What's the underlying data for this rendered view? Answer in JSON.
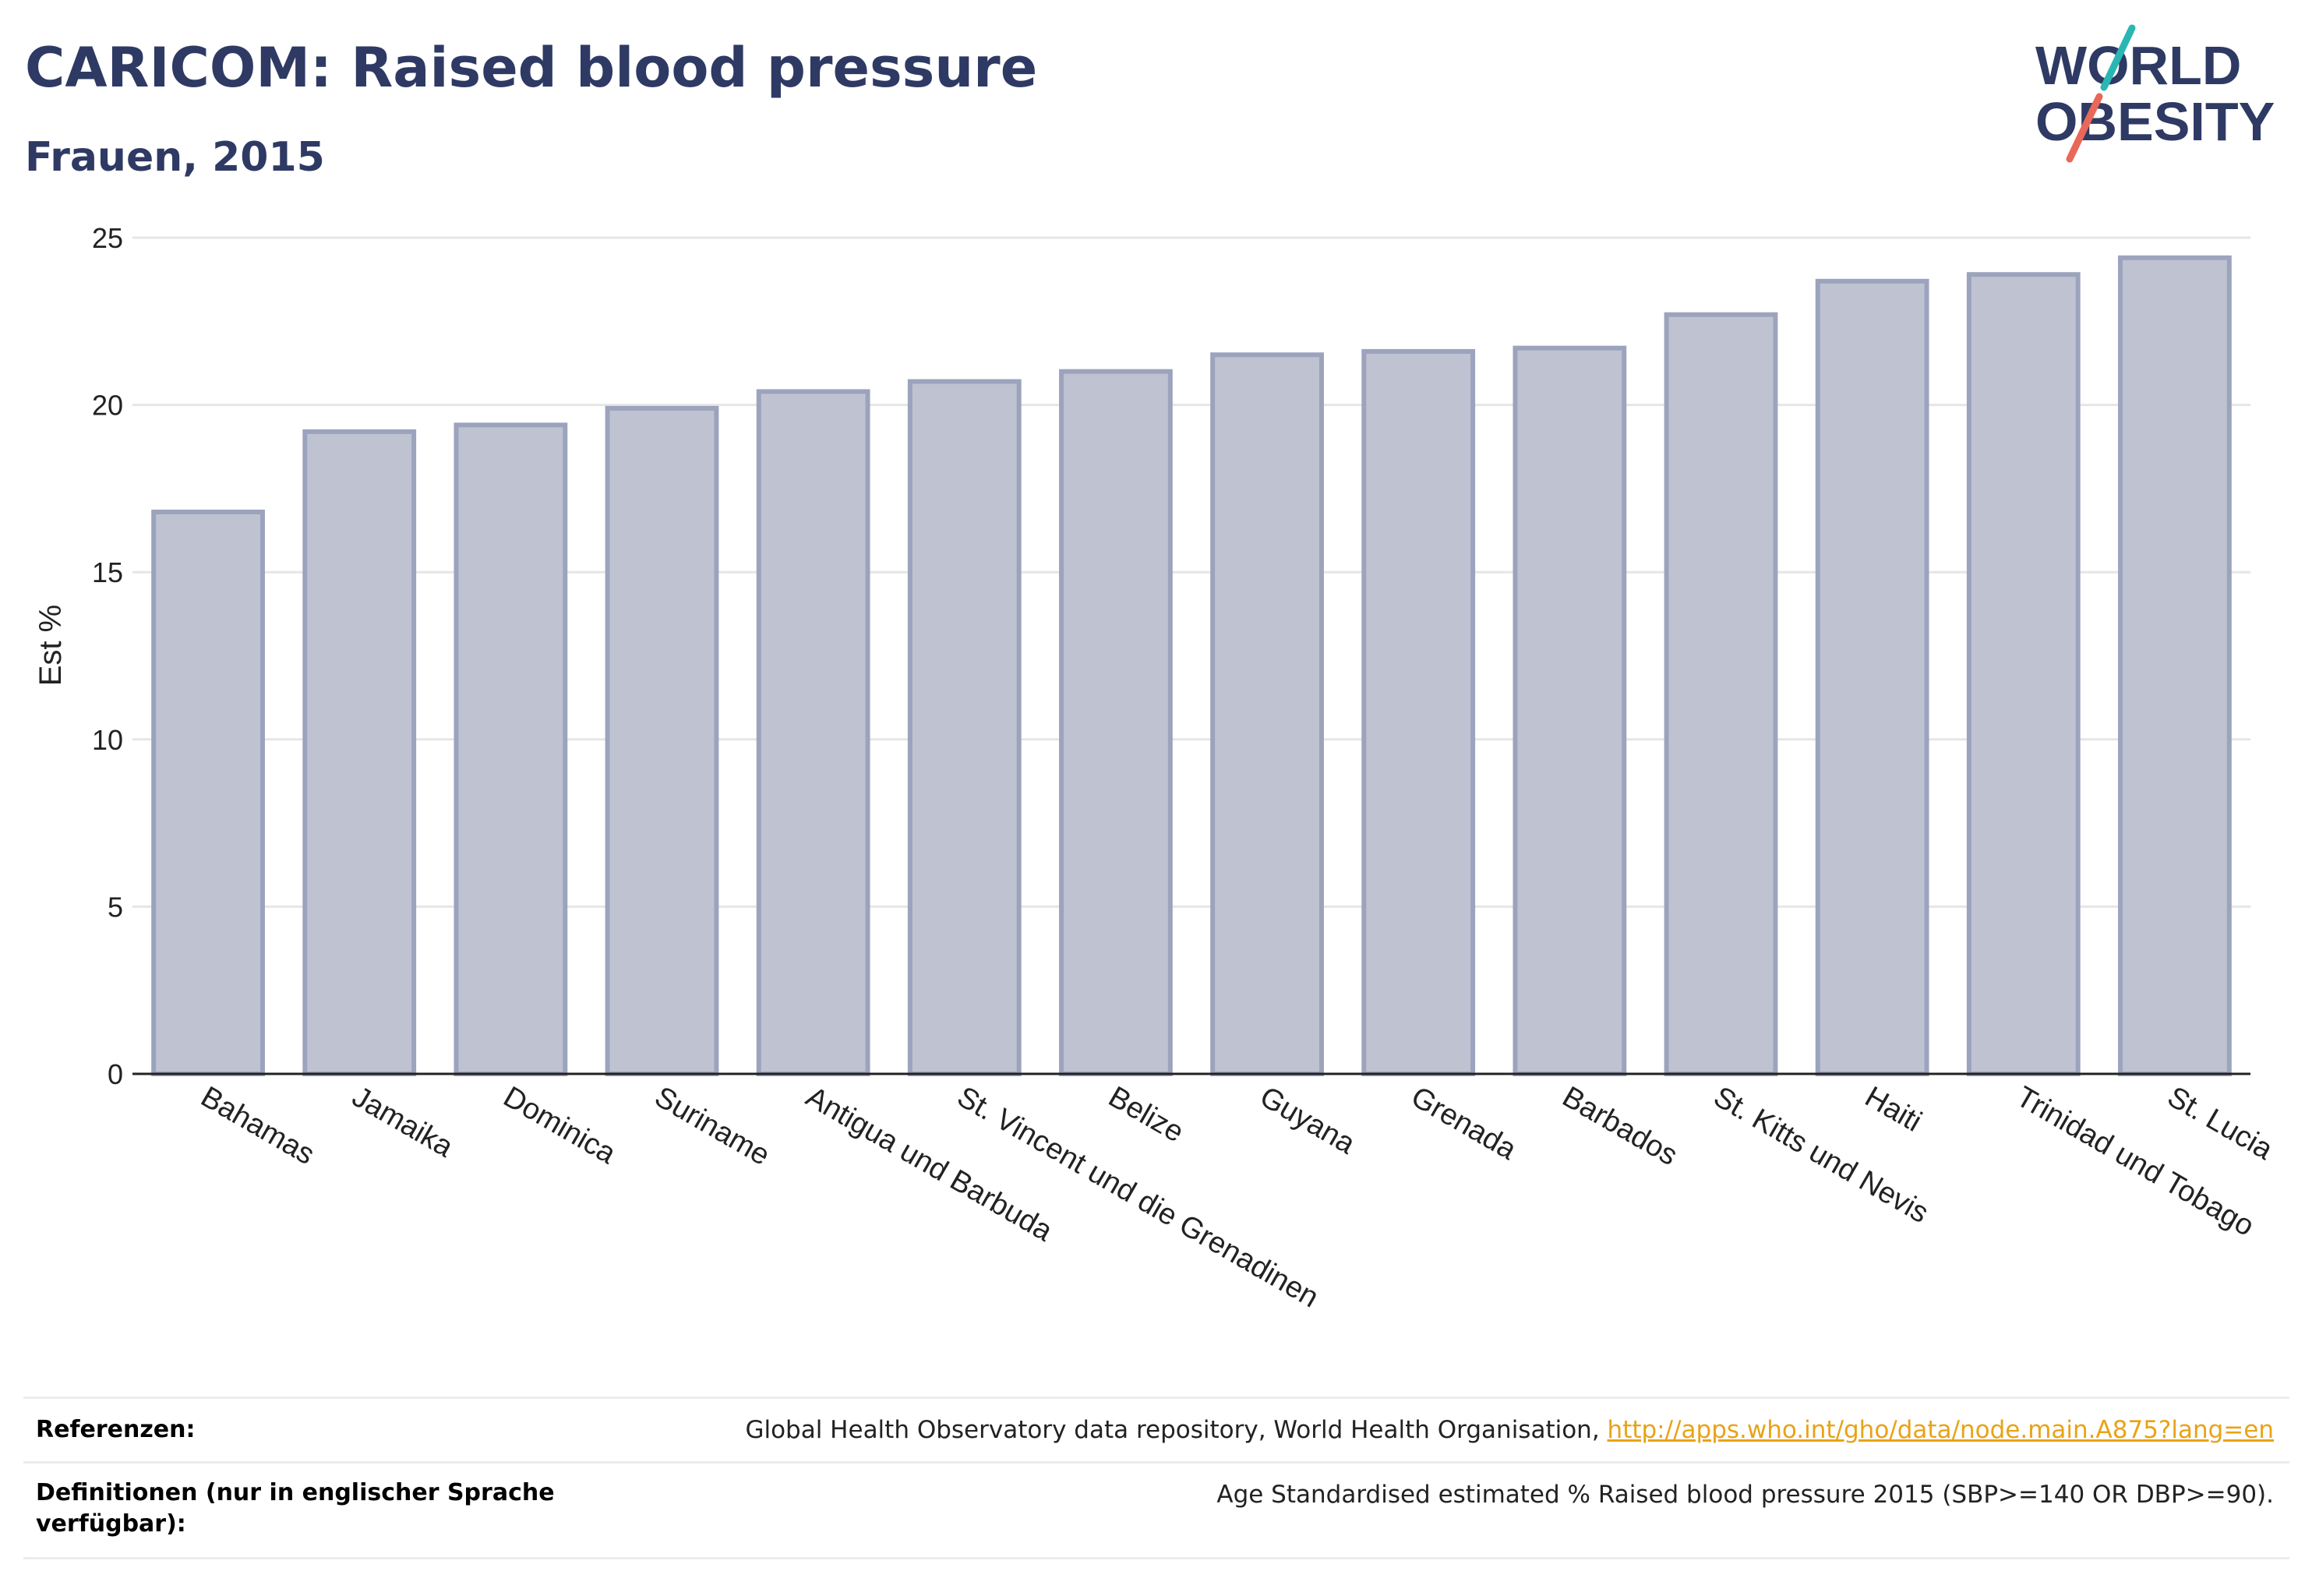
{
  "header": {
    "title": "CARICOM: Raised blood pressure",
    "subtitle": "Frauen, 2015"
  },
  "logo": {
    "line1": "WORLD",
    "line2": "OBESITY",
    "colors": {
      "text": "#2e3a63",
      "slash_top": "#2ab7b4",
      "slash_bottom": "#e8685a"
    }
  },
  "colors": {
    "bar_fill": "#bfc3d1",
    "bar_stroke": "#9ca3bd",
    "grid": "#e6e6e6",
    "axis": "#222222",
    "title": "#2e3a63",
    "link": "#e8a317"
  },
  "chart_data": {
    "type": "bar",
    "title": "CARICOM: Raised blood pressure",
    "subtitle": "Frauen, 2015",
    "xlabel": "",
    "ylabel": "Est %",
    "ylim": [
      0,
      25
    ],
    "yticks": [
      0,
      5,
      10,
      15,
      20,
      25
    ],
    "grid": true,
    "categories": [
      "Bahamas",
      "Jamaika",
      "Dominica",
      "Suriname",
      "Antigua und Barbuda",
      "St. Vincent und die Grenadinen",
      "Belize",
      "Guyana",
      "Grenada",
      "Barbados",
      "St. Kitts und Nevis",
      "Haiti",
      "Trinidad und Tobago",
      "St. Lucia"
    ],
    "values": [
      16.8,
      19.2,
      19.4,
      19.9,
      20.4,
      20.7,
      21.0,
      21.5,
      21.6,
      21.7,
      22.7,
      23.7,
      23.9,
      24.4
    ]
  },
  "references": [
    {
      "label": "Referenzen:",
      "text": "Global Health Observatory data repository, World Health Organisation, ",
      "link": "http://apps.who.int/gho/data/node.main.A875?lang=en"
    },
    {
      "label": "Definitionen (nur in englischer Sprache verfügbar):",
      "text": "Age Standardised estimated % Raised blood pressure 2015 (SBP>=140 OR DBP>=90)."
    }
  ]
}
